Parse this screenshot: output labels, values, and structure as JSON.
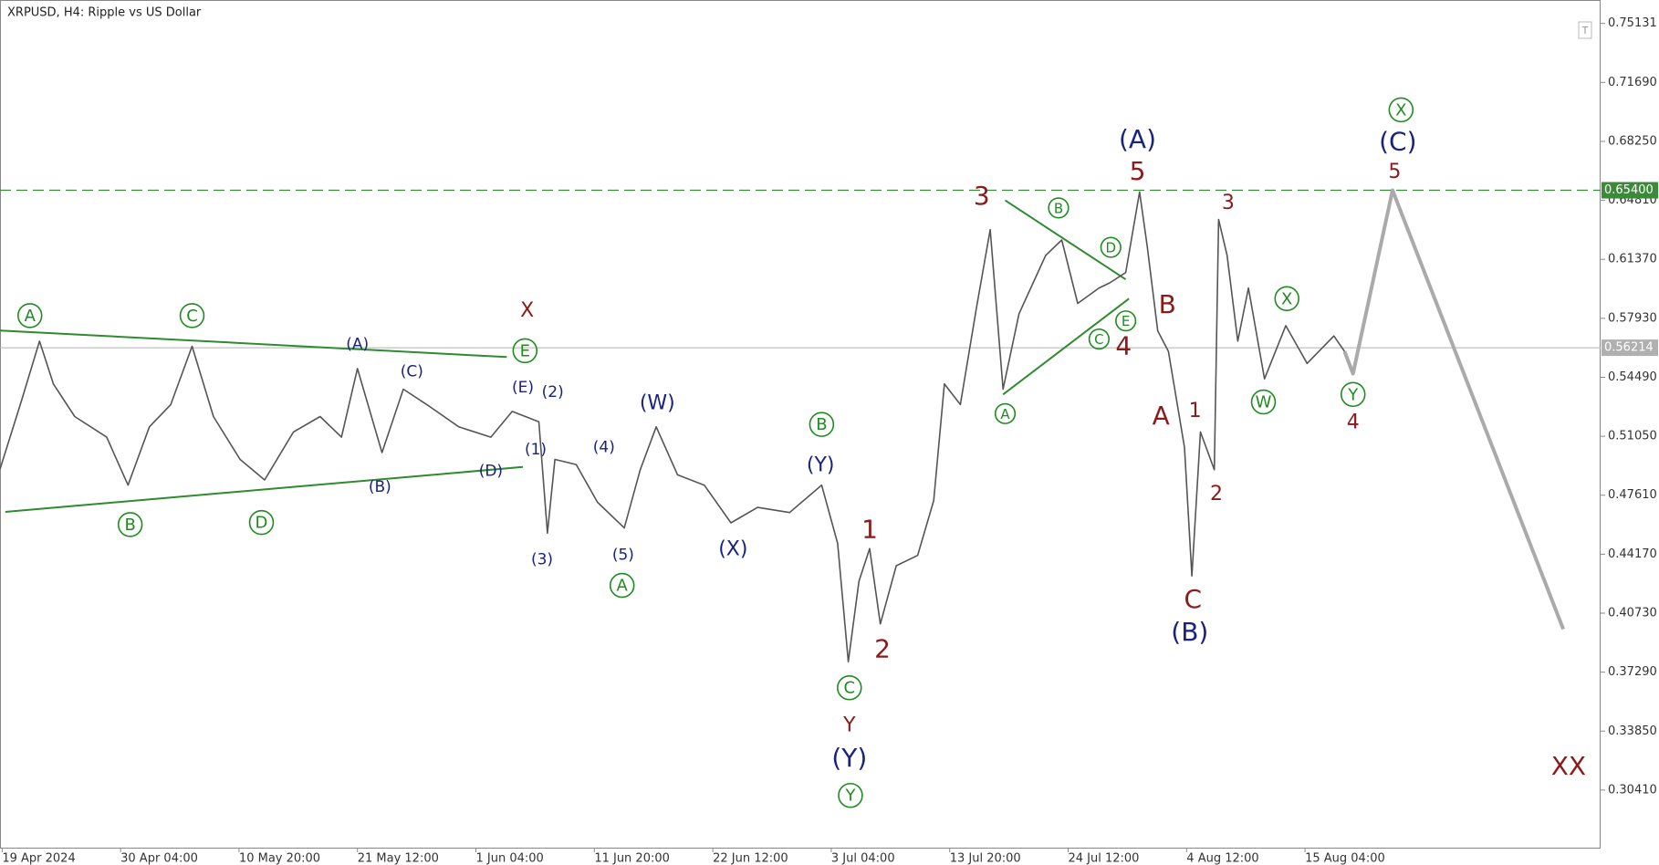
{
  "chart_data": {
    "type": "line",
    "title": "XRPUSD, H4:  Ripple vs US Dollar",
    "xlim": [
      0,
      150
    ],
    "ylim": [
      0.27051,
      0.76499
    ],
    "xticks": [
      {
        "value": 0.2,
        "label": "19 Apr 2024"
      },
      {
        "value": 11.3,
        "label": "30 Apr 04:00"
      },
      {
        "value": 22.4,
        "label": "10 May 20:00"
      },
      {
        "value": 33.5,
        "label": "21 May 12:00"
      },
      {
        "value": 44.6,
        "label": "1 Jun 04:00"
      },
      {
        "value": 55.7,
        "label": "11 Jun 20:00"
      },
      {
        "value": 66.8,
        "label": "22 Jun 12:00"
      },
      {
        "value": 77.9,
        "label": "3 Jul 04:00"
      },
      {
        "value": 89,
        "label": "13 Jul 20:00"
      },
      {
        "value": 100.1,
        "label": "24 Jul 12:00"
      },
      {
        "value": 111.2,
        "label": "4 Aug 12:00"
      },
      {
        "value": 122.3,
        "label": "15 Aug 04:00"
      }
    ],
    "yticks": [
      0.75131,
      {
        "value": 0.7169,
        "label": "0.71690"
      },
      {
        "value": 0.6825,
        "label": "0.68250"
      },
      {
        "value": 0.6481,
        "label": "0.64810"
      },
      {
        "value": 0.6137,
        "label": "0.61370"
      },
      {
        "value": 0.5793,
        "label": "0.57930"
      },
      {
        "value": 0.5449,
        "label": "0.54490"
      },
      {
        "value": 0.5105,
        "label": "0.51050"
      },
      {
        "value": 0.4761,
        "label": "0.47610"
      },
      {
        "value": 0.4417,
        "label": "0.44170"
      },
      {
        "value": 0.4073,
        "label": "0.40730"
      },
      {
        "value": 0.3729,
        "label": "0.37290"
      },
      {
        "value": 0.3385,
        "label": "0.33850"
      },
      {
        "value": 0.3041,
        "label": "0.30410"
      }
    ],
    "levels": [
      {
        "value": 0.654,
        "label": "0.65400",
        "color": "#3a8a3a",
        "style": "dashed"
      },
      {
        "value": 0.56214,
        "label": "0.56214",
        "color": "#b0b0b0",
        "style": "solid"
      }
    ],
    "series": [
      {
        "color": "#555555",
        "x": [
          0,
          2,
          3.7,
          5,
          7,
          10,
          12,
          14,
          16,
          18,
          20,
          22.5,
          24.8,
          27.5,
          30,
          32,
          33.5,
          35.8,
          37.8,
          40,
          43,
          46,
          48,
          50.5,
          51.3,
          52,
          54,
          56,
          58.5,
          60,
          61.5,
          63.5,
          66,
          68.5,
          71,
          74,
          77,
          78.5,
          79.5,
          80.5,
          81.5,
          82.5,
          84,
          86,
          87.5,
          88.5,
          90,
          91.5,
          92.8,
          94,
          95.5,
          98,
          99.5,
          101,
          103,
          104,
          105.5,
          106.8,
          107.5,
          108.5,
          109.5,
          111,
          111.7,
          112.5,
          113.8,
          114.2,
          115,
          116,
          117,
          118.5,
          120.5,
          122.5,
          125,
          126
        ],
        "values": [
          0.4913,
          0.531,
          0.566,
          0.541,
          0.522,
          0.51,
          0.482,
          0.516,
          0.529,
          0.563,
          0.522,
          0.497,
          0.485,
          0.513,
          0.522,
          0.51,
          0.55,
          0.501,
          0.538,
          0.529,
          0.516,
          0.51,
          0.525,
          0.519,
          0.454,
          0.497,
          0.494,
          0.472,
          0.457,
          0.491,
          0.516,
          0.488,
          0.482,
          0.46,
          0.469,
          0.466,
          0.482,
          0.448,
          0.379,
          0.426,
          0.445,
          0.401,
          0.435,
          0.441,
          0.473,
          0.541,
          0.529,
          0.585,
          0.631,
          0.538,
          0.582,
          0.616,
          0.625,
          0.588,
          0.597,
          0.6,
          0.606,
          0.653,
          0.622,
          0.572,
          0.56,
          0.504,
          0.429,
          0.513,
          0.491,
          0.637,
          0.616,
          0.566,
          0.597,
          0.544,
          0.575,
          0.553,
          0.569,
          0.56
        ]
      },
      {
        "color": "#aaaaaa",
        "x": [
          126,
          126.8,
          130.5,
          146.5
        ],
        "values": [
          0.56,
          0.547,
          0.654,
          0.398
        ]
      }
    ],
    "trendlines": [
      {
        "color": "#2e8b2e",
        "x": [
          0,
          47.5
        ],
        "values": [
          0.5722,
          0.5567
        ]
      },
      {
        "color": "#2e8b2e",
        "x": [
          0.5,
          49
        ],
        "values": [
          0.4664,
          0.4926
        ]
      },
      {
        "color": "#2e8b2e",
        "x": [
          94.2,
          105.5
        ],
        "values": [
          0.6481,
          0.602
        ]
      },
      {
        "color": "#2e8b2e",
        "x": [
          94,
          105.8
        ],
        "values": [
          0.5349,
          0.5908
        ]
      }
    ],
    "annotations": [
      {
        "text": "A",
        "x": 2.8,
        "y": 0.5809,
        "color": "#1e8c1e",
        "circled": true,
        "size": "medium"
      },
      {
        "text": "C",
        "x": 18,
        "y": 0.5809,
        "color": "#1e8c1e",
        "circled": true,
        "size": "medium"
      },
      {
        "text": "E",
        "x": 49.2,
        "y": 0.5604,
        "color": "#1e8c1e",
        "circled": true,
        "size": "medium"
      },
      {
        "text": "B",
        "x": 12.2,
        "y": 0.459,
        "color": "#1e8c1e",
        "circled": true,
        "size": "medium"
      },
      {
        "text": "D",
        "x": 24.5,
        "y": 0.4602,
        "color": "#1e8c1e",
        "circled": true,
        "size": "medium"
      },
      {
        "text": "A",
        "x": 58.3,
        "y": 0.4235,
        "color": "#1e8c1e",
        "circled": true,
        "size": "medium"
      },
      {
        "text": "B",
        "x": 77,
        "y": 0.5174,
        "color": "#1e8c1e",
        "circled": true,
        "size": "medium"
      },
      {
        "text": "C",
        "x": 79.6,
        "y": 0.3638,
        "color": "#1e8c1e",
        "circled": true,
        "size": "medium"
      },
      {
        "text": "Y",
        "x": 79.7,
        "y": 0.301,
        "color": "#1e8c1e",
        "circled": true,
        "size": "medium"
      },
      {
        "text": "A",
        "x": 94.2,
        "y": 0.5237,
        "color": "#1e8c1e",
        "circled": true,
        "size": "small"
      },
      {
        "text": "B",
        "x": 99.2,
        "y": 0.6437,
        "color": "#1e8c1e",
        "circled": true,
        "size": "small"
      },
      {
        "text": "D",
        "x": 104.1,
        "y": 0.6207,
        "color": "#1e8c1e",
        "circled": true,
        "size": "small"
      },
      {
        "text": "E",
        "x": 105.5,
        "y": 0.5778,
        "color": "#1e8c1e",
        "circled": true,
        "size": "small"
      },
      {
        "text": "C",
        "x": 103,
        "y": 0.5672,
        "color": "#1e8c1e",
        "circled": true,
        "size": "small"
      },
      {
        "text": "X",
        "x": 131.3,
        "y": 0.7009,
        "color": "#1e8c1e",
        "circled": true,
        "size": "medium"
      },
      {
        "text": "W",
        "x": 118.4,
        "y": 0.5305,
        "color": "#1e8c1e",
        "circled": true,
        "size": "medium"
      },
      {
        "text": "X",
        "x": 120.6,
        "y": 0.5908,
        "color": "#1e8c1e",
        "circled": true,
        "size": "medium"
      },
      {
        "text": "Y",
        "x": 126.8,
        "y": 0.5349,
        "color": "#1e8c1e",
        "circled": true,
        "size": "medium"
      },
      {
        "text": "(A)",
        "x": 33.5,
        "y": 0.5647,
        "color": "#1a237e",
        "circled": false,
        "size": "small"
      },
      {
        "text": "(C)",
        "x": 38.6,
        "y": 0.5485,
        "color": "#1a237e",
        "circled": false,
        "size": "small"
      },
      {
        "text": "(B)",
        "x": 35.6,
        "y": 0.4814,
        "color": "#1a237e",
        "circled": false,
        "size": "small"
      },
      {
        "text": "(D)",
        "x": 46,
        "y": 0.4907,
        "color": "#1a237e",
        "circled": false,
        "size": "small"
      },
      {
        "text": "(E)",
        "x": 49,
        "y": 0.5392,
        "color": "#1a237e",
        "circled": false,
        "size": "small"
      },
      {
        "text": "(2)",
        "x": 51.8,
        "y": 0.5367,
        "color": "#1a237e",
        "circled": false,
        "size": "small"
      },
      {
        "text": "(1)",
        "x": 50.2,
        "y": 0.5031,
        "color": "#1a237e",
        "circled": false,
        "size": "small"
      },
      {
        "text": "(3)",
        "x": 50.8,
        "y": 0.4391,
        "color": "#1a237e",
        "circled": false,
        "size": "small"
      },
      {
        "text": "(4)",
        "x": 56.6,
        "y": 0.5044,
        "color": "#1a237e",
        "circled": false,
        "size": "small"
      },
      {
        "text": "(5)",
        "x": 58.4,
        "y": 0.4416,
        "color": "#1a237e",
        "circled": false,
        "size": "small"
      },
      {
        "text": "(W)",
        "x": 61.6,
        "y": 0.5299,
        "color": "#1a237e",
        "circled": false,
        "size": "medium"
      },
      {
        "text": "(X)",
        "x": 68.7,
        "y": 0.4447,
        "color": "#1a237e",
        "circled": false,
        "size": "medium"
      },
      {
        "text": "(Y)",
        "x": 76.9,
        "y": 0.4938,
        "color": "#1a237e",
        "circled": false,
        "size": "medium"
      },
      {
        "text": "(Y)",
        "x": 79.6,
        "y": 0.3228,
        "color": "#1a237e",
        "circled": false,
        "size": "large"
      },
      {
        "text": "(A)",
        "x": 106.6,
        "y": 0.6835,
        "color": "#1a237e",
        "circled": false,
        "size": "large"
      },
      {
        "text": "(C)",
        "x": 131,
        "y": 0.6823,
        "color": "#1a237e",
        "circled": false,
        "size": "large"
      },
      {
        "text": "(B)",
        "x": 111.5,
        "y": 0.3962,
        "color": "#1a237e",
        "circled": false,
        "size": "large"
      },
      {
        "text": "X",
        "x": 49.4,
        "y": 0.584,
        "color": "#8b1a1a",
        "circled": false,
        "size": "medium"
      },
      {
        "text": "1",
        "x": 81.5,
        "y": 0.4559,
        "color": "#8b1a1a",
        "circled": false,
        "size": "large"
      },
      {
        "text": "2",
        "x": 82.7,
        "y": 0.3862,
        "color": "#8b1a1a",
        "circled": false,
        "size": "large"
      },
      {
        "text": "Y",
        "x": 79.6,
        "y": 0.342,
        "color": "#8b1a1a",
        "circled": false,
        "size": "medium"
      },
      {
        "text": "3",
        "x": 92,
        "y": 0.6506,
        "color": "#8b1a1a",
        "circled": false,
        "size": "large"
      },
      {
        "text": "4",
        "x": 105.3,
        "y": 0.5629,
        "color": "#8b1a1a",
        "circled": false,
        "size": "large"
      },
      {
        "text": "5",
        "x": 106.6,
        "y": 0.6649,
        "color": "#8b1a1a",
        "circled": false,
        "size": "large"
      },
      {
        "text": "B",
        "x": 109.4,
        "y": 0.5871,
        "color": "#8b1a1a",
        "circled": false,
        "size": "large"
      },
      {
        "text": "A",
        "x": 108.8,
        "y": 0.5224,
        "color": "#8b1a1a",
        "circled": false,
        "size": "large"
      },
      {
        "text": "1",
        "x": 112,
        "y": 0.5255,
        "color": "#8b1a1a",
        "circled": false,
        "size": "medium"
      },
      {
        "text": "2",
        "x": 114,
        "y": 0.477,
        "color": "#8b1a1a",
        "circled": false,
        "size": "medium"
      },
      {
        "text": "C",
        "x": 111.8,
        "y": 0.4154,
        "color": "#8b1a1a",
        "circled": false,
        "size": "large"
      },
      {
        "text": "3",
        "x": 115.1,
        "y": 0.6468,
        "color": "#8b1a1a",
        "circled": false,
        "size": "medium"
      },
      {
        "text": "5",
        "x": 130.7,
        "y": 0.6649,
        "color": "#8b1a1a",
        "circled": false,
        "size": "medium"
      },
      {
        "text": "4",
        "x": 126.8,
        "y": 0.5187,
        "color": "#8b1a1a",
        "circled": false,
        "size": "medium"
      },
      {
        "text": "XX",
        "x": 147,
        "y": 0.3178,
        "color": "#8b1a1a",
        "circled": false,
        "size": "large"
      }
    ]
  }
}
